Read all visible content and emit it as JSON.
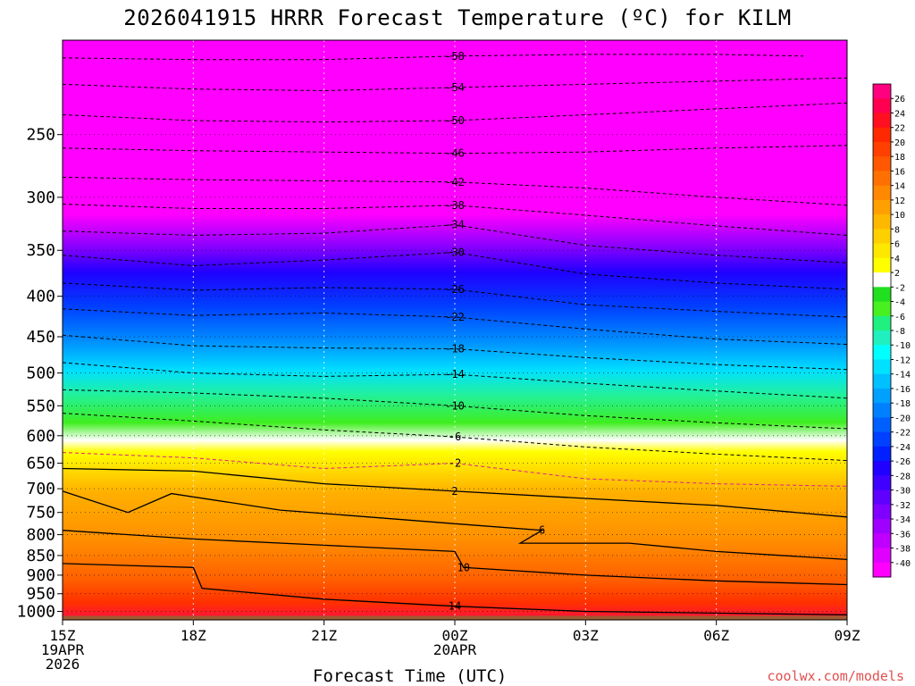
{
  "title": "2026041915 HRRR Forecast Temperature (ºC) for KILM",
  "credit": "coolwx.com/models",
  "chart_data": {
    "type": "heatmap",
    "title": "2026041915 HRRR Forecast Temperature (ºC) for KILM",
    "xlabel": "Forecast Time (UTC)",
    "ylabel": "",
    "x_range_hours": [
      0,
      18
    ],
    "y_range_hpa": [
      1025,
      190
    ],
    "y_scale": "log",
    "x_ticks": [
      {
        "hour": 0,
        "lines": [
          "15Z",
          "19APR",
          "2026"
        ]
      },
      {
        "hour": 3,
        "lines": [
          "18Z"
        ]
      },
      {
        "hour": 6,
        "lines": [
          "21Z"
        ]
      },
      {
        "hour": 9,
        "lines": [
          "00Z",
          "20APR"
        ]
      },
      {
        "hour": 12,
        "lines": [
          "03Z"
        ]
      },
      {
        "hour": 15,
        "lines": [
          "06Z"
        ]
      },
      {
        "hour": 18,
        "lines": [
          "09Z"
        ]
      }
    ],
    "y_ticks": [
      250,
      300,
      350,
      400,
      450,
      500,
      550,
      600,
      650,
      700,
      750,
      800,
      850,
      900,
      950,
      1000
    ],
    "colorbar_labels": [
      26,
      24,
      22,
      20,
      18,
      16,
      14,
      12,
      10,
      8,
      6,
      4,
      2,
      -2,
      -4,
      -6,
      -8,
      -10,
      -12,
      -14,
      -16,
      -18,
      -20,
      -22,
      -24,
      -26,
      -28,
      -30,
      -32,
      -34,
      -36,
      -38,
      -40
    ],
    "colorbar_colors": [
      "#ff0080",
      "#ff0050",
      "#ff1020",
      "#ff2800",
      "#ff4000",
      "#ff5800",
      "#ff7000",
      "#ff8800",
      "#ffa000",
      "#ffb800",
      "#ffd000",
      "#ffe800",
      "#ffff00",
      "#ffffff",
      "#20e020",
      "#48f020",
      "#20f080",
      "#20f0c0",
      "#00ffff",
      "#00e0ff",
      "#00c0ff",
      "#00a0ff",
      "#0080ff",
      "#0060ff",
      "#0040ff",
      "#0020ff",
      "#2000ff",
      "#4000ff",
      "#6000ff",
      "#8000ff",
      "#a000ff",
      "#c000ff",
      "#e000ff",
      "#ff00ff"
    ],
    "isotherms": [
      {
        "value": -58,
        "label": "-58",
        "points": [
          [
            0,
            200
          ],
          [
            3,
            201
          ],
          [
            6,
            201
          ],
          [
            9,
            199
          ],
          [
            12,
            198
          ],
          [
            15,
            198
          ],
          [
            17,
            199
          ]
        ]
      },
      {
        "value": -54,
        "label": "-54",
        "points": [
          [
            0,
            216
          ],
          [
            3,
            219
          ],
          [
            6,
            220
          ],
          [
            9,
            218
          ],
          [
            12,
            216
          ],
          [
            15,
            214
          ],
          [
            18,
            212
          ]
        ]
      },
      {
        "value": -50,
        "label": "-50",
        "points": [
          [
            0,
            236
          ],
          [
            3,
            240
          ],
          [
            6,
            241
          ],
          [
            9,
            240
          ],
          [
            12,
            236
          ],
          [
            15,
            232
          ],
          [
            18,
            228
          ]
        ]
      },
      {
        "value": -46,
        "label": "-46",
        "points": [
          [
            0,
            260
          ],
          [
            3,
            262
          ],
          [
            6,
            263
          ],
          [
            9,
            264
          ],
          [
            12,
            263
          ],
          [
            15,
            260
          ],
          [
            18,
            258
          ]
        ]
      },
      {
        "value": -42,
        "label": "-42",
        "points": [
          [
            0,
            283
          ],
          [
            3,
            285
          ],
          [
            6,
            286
          ],
          [
            9,
            287
          ],
          [
            12,
            292
          ],
          [
            15,
            300
          ],
          [
            18,
            307
          ]
        ]
      },
      {
        "value": -38,
        "label": "-38",
        "points": [
          [
            0,
            306
          ],
          [
            3,
            310
          ],
          [
            6,
            310
          ],
          [
            9,
            307
          ],
          [
            12,
            316
          ],
          [
            15,
            326
          ],
          [
            18,
            335
          ]
        ]
      },
      {
        "value": -34,
        "label": "-34",
        "points": [
          [
            0,
            331
          ],
          [
            3,
            335
          ],
          [
            6,
            333
          ],
          [
            9,
            325
          ],
          [
            12,
            345
          ],
          [
            15,
            355
          ],
          [
            18,
            363
          ]
        ]
      },
      {
        "value": -30,
        "label": "-30",
        "points": [
          [
            0,
            355
          ],
          [
            3,
            366
          ],
          [
            6,
            360
          ],
          [
            9,
            352
          ],
          [
            12,
            375
          ],
          [
            15,
            385
          ],
          [
            18,
            392
          ]
        ]
      },
      {
        "value": -26,
        "label": "-26",
        "points": [
          [
            0,
            385
          ],
          [
            3,
            393
          ],
          [
            6,
            390
          ],
          [
            9,
            392
          ],
          [
            12,
            410
          ],
          [
            15,
            418
          ],
          [
            18,
            425
          ]
        ]
      },
      {
        "value": -22,
        "label": "-22",
        "points": [
          [
            0,
            415
          ],
          [
            3,
            423
          ],
          [
            6,
            420
          ],
          [
            9,
            425
          ],
          [
            12,
            440
          ],
          [
            15,
            453
          ],
          [
            18,
            460
          ]
        ]
      },
      {
        "value": -18,
        "label": "-18",
        "points": [
          [
            0,
            448
          ],
          [
            3,
            462
          ],
          [
            6,
            465
          ],
          [
            9,
            466
          ],
          [
            12,
            478
          ],
          [
            15,
            488
          ],
          [
            18,
            495
          ]
        ]
      },
      {
        "value": -14,
        "label": "-14",
        "points": [
          [
            0,
            485
          ],
          [
            3,
            500
          ],
          [
            6,
            505
          ],
          [
            9,
            502
          ],
          [
            12,
            515
          ],
          [
            15,
            527
          ],
          [
            18,
            538
          ]
        ]
      },
      {
        "value": -10,
        "label": "-10",
        "points": [
          [
            0,
            525
          ],
          [
            3,
            530
          ],
          [
            6,
            538
          ],
          [
            9,
            550
          ],
          [
            12,
            566
          ],
          [
            15,
            578
          ],
          [
            18,
            588
          ]
        ]
      },
      {
        "value": -6,
        "label": "-6",
        "points": [
          [
            0,
            562
          ],
          [
            3,
            575
          ],
          [
            6,
            590
          ],
          [
            9,
            602
          ],
          [
            12,
            620
          ],
          [
            15,
            633
          ],
          [
            18,
            645
          ]
        ]
      },
      {
        "value": -2,
        "label": "-2",
        "points": [
          [
            0,
            630
          ],
          [
            3,
            640
          ],
          [
            6,
            660
          ],
          [
            9,
            650
          ],
          [
            12,
            680
          ],
          [
            15,
            690
          ],
          [
            18,
            695
          ]
        ]
      },
      {
        "value": 2,
        "label": "2",
        "points": [
          [
            0,
            660
          ],
          [
            3,
            665
          ],
          [
            6,
            690
          ],
          [
            9,
            705
          ],
          [
            12,
            720
          ],
          [
            15,
            735
          ],
          [
            18,
            760
          ]
        ]
      },
      {
        "value": 6,
        "label": "6",
        "points": [
          [
            0,
            705
          ],
          [
            1.5,
            750
          ],
          [
            2.5,
            710
          ],
          [
            5,
            745
          ],
          [
            9,
            775
          ],
          [
            11,
            790
          ],
          [
            10.5,
            820
          ],
          [
            13,
            820
          ],
          [
            15,
            840
          ],
          [
            18,
            860
          ]
        ]
      },
      {
        "value": 10,
        "label": "10",
        "points": [
          [
            0,
            790
          ],
          [
            3,
            810
          ],
          [
            6,
            825
          ],
          [
            9,
            840
          ],
          [
            9.2,
            880
          ],
          [
            12,
            900
          ],
          [
            15,
            915
          ],
          [
            18,
            925
          ]
        ]
      },
      {
        "value": 14,
        "label": "14",
        "points": [
          [
            0,
            870
          ],
          [
            3,
            880
          ],
          [
            3.2,
            935
          ],
          [
            6,
            965
          ],
          [
            9,
            985
          ],
          [
            12,
            1000
          ],
          [
            15,
            1005
          ],
          [
            18,
            1010
          ]
        ]
      }
    ]
  }
}
